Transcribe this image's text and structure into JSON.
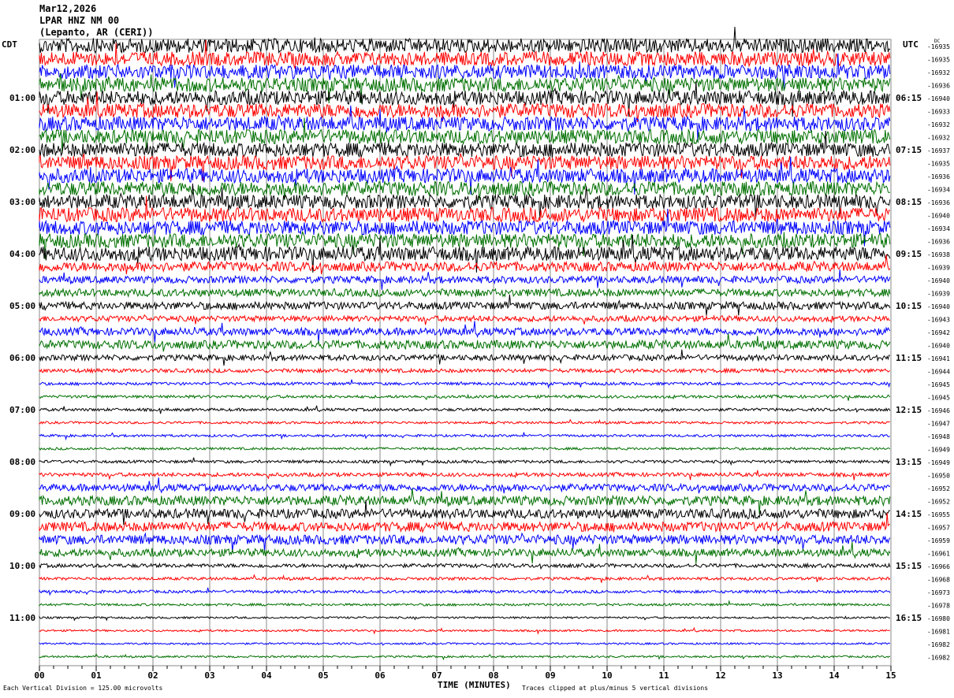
{
  "header": {
    "date": "Mar12,2026",
    "station": "LPAR HNZ NM 00",
    "location": "(Lepanto, AR (CERI))"
  },
  "chart_data": {
    "type": "line",
    "subtype": "helicorder",
    "xlabel": "TIME (MINUTES)",
    "xlim": [
      0,
      15
    ],
    "x_ticks": [
      "00",
      "01",
      "02",
      "03",
      "04",
      "05",
      "06",
      "07",
      "08",
      "09",
      "10",
      "11",
      "12",
      "13",
      "14",
      "15"
    ],
    "left_timezone": "CDT",
    "right_timezone": "UTC",
    "dc_header": "DC",
    "grid": true,
    "colors": [
      "#000000",
      "#ff0000",
      "#0000ff",
      "#007000"
    ],
    "left_labels": {
      "4": "01:00",
      "8": "02:00",
      "12": "03:00",
      "16": "04:00",
      "20": "05:00",
      "24": "06:00",
      "28": "07:00",
      "32": "08:00",
      "36": "09:00",
      "40": "10:00",
      "44": "11:00"
    },
    "right_labels": {
      "4": "06:15",
      "8": "07:15",
      "12": "08:15",
      "16": "09:15",
      "20": "10:15",
      "24": "11:15",
      "28": "12:15",
      "32": "13:15",
      "36": "14:15",
      "40": "15:15",
      "44": "16:15"
    },
    "dc_values": [
      "-16935",
      "-16935",
      "-16932",
      "-16936",
      "-16940",
      "-16933",
      "-16932",
      "-16932",
      "-16937",
      "-16935",
      "-16936",
      "-16934",
      "-16936",
      "-16940",
      "-16934",
      "-16936",
      "-16938",
      "-16939",
      "-16940",
      "-16939",
      "-16940",
      "-16943",
      "-16942",
      "-16940",
      "-16941",
      "-16944",
      "-16945",
      "-16945",
      "-16946",
      "-16947",
      "-16948",
      "-16949",
      "-16949",
      "-16950",
      "-16952",
      "-16952",
      "-16955",
      "-16957",
      "-16959",
      "-16961",
      "-16966",
      "-16968",
      "-16973",
      "-16978",
      "-16980",
      "-16981",
      "-16982",
      "-16982"
    ],
    "amplitude_divisions": [
      3,
      3,
      3,
      3,
      3,
      3,
      3,
      3,
      3,
      3,
      3,
      3,
      3,
      3,
      3,
      3,
      3,
      2,
      1.5,
      1.6,
      1.6,
      1.2,
      1.6,
      1.8,
      1.2,
      0.8,
      0.6,
      0.6,
      0.6,
      0.5,
      0.5,
      0.5,
      0.6,
      0.8,
      1.5,
      2,
      2,
      2,
      2,
      1.6,
      0.8,
      0.6,
      0.6,
      0.5,
      0.4,
      0.4,
      0.4,
      0.4
    ]
  },
  "footer": {
    "scale": "Each Vertical Division =  125.00 microvolts",
    "clip": "Traces clipped at plus/minus 5 vertical divisions"
  }
}
